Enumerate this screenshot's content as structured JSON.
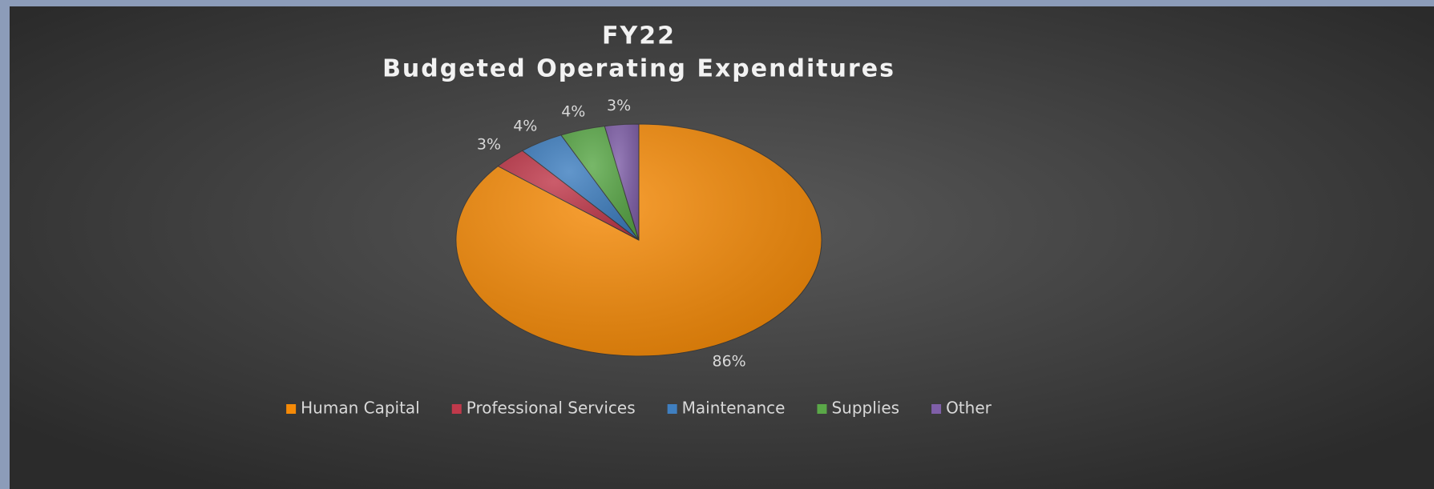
{
  "chart_data": {
    "type": "pie",
    "title": "FY22",
    "subtitle": "Budgeted Operating Expenditures",
    "categories": [
      "Human Capital",
      "Professional Services",
      "Maintenance",
      "Supplies",
      "Other"
    ],
    "values": [
      86,
      3,
      4,
      4,
      3
    ],
    "value_labels": [
      "86%",
      "3%",
      "4%",
      "4%",
      "3%"
    ],
    "colors": [
      "#f58a07",
      "#c0394b",
      "#3f7fc0",
      "#5aa848",
      "#7f5fa8"
    ],
    "legend": "bottom"
  }
}
